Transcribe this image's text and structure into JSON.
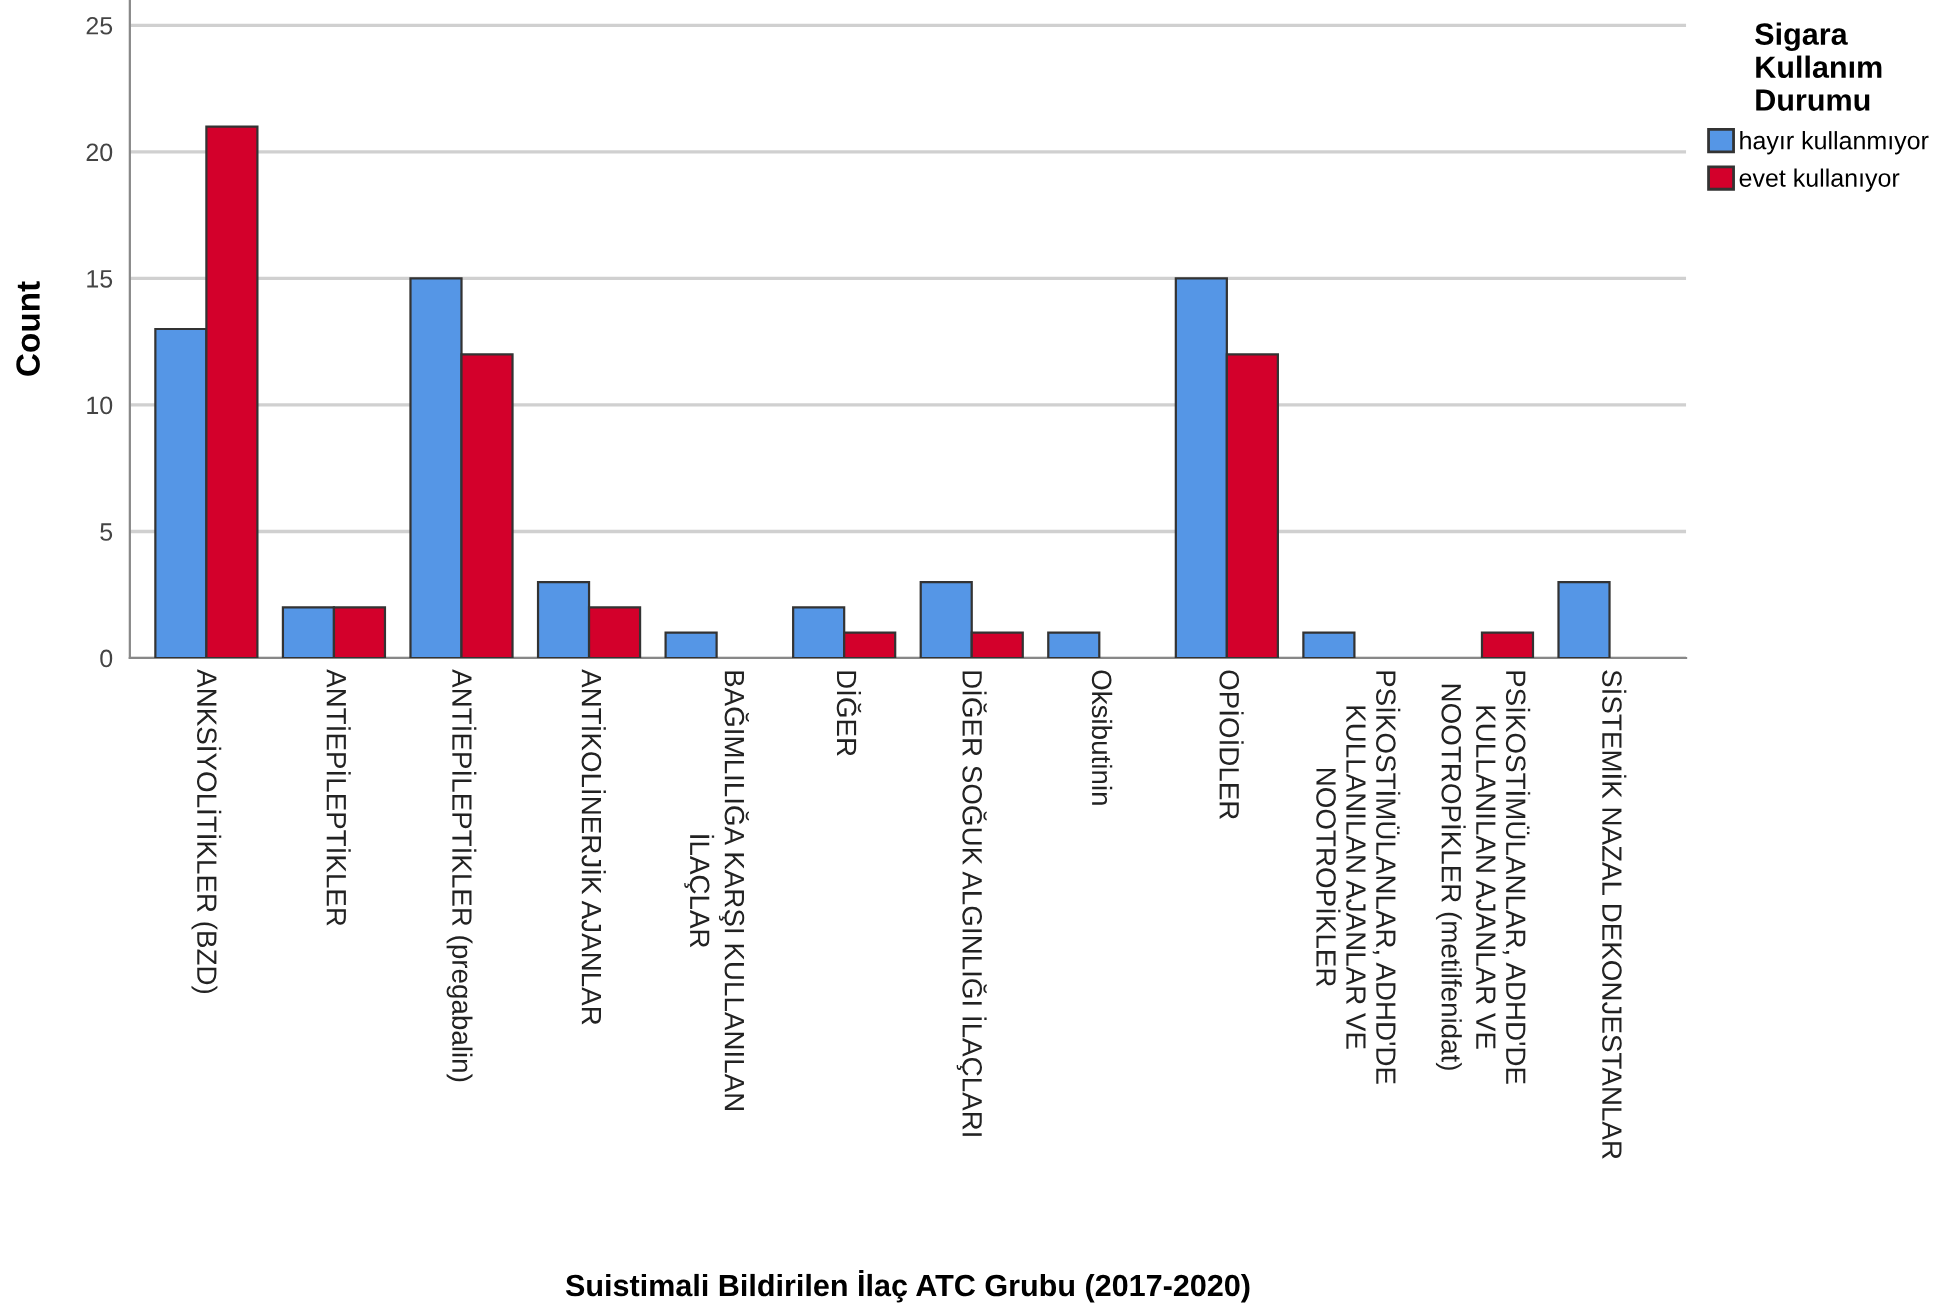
{
  "chart_data": {
    "type": "bar",
    "xlabel": "Suistimali Bildirilen İlaç ATC Grubu (2017-2020)",
    "ylabel": "Count",
    "legend_title": "Sigara\nKullanım\nDurumu",
    "categories": [
      "ANKSİYOLİTİKLER (BZD)",
      "ANTİEPİLEPTİKLER",
      "ANTİEPİLEPTİKLER (pregabalin)",
      "ANTİKOLİNERJİK AJANLAR",
      "BAĞIMLILIĞA KARŞI KULLANILAN\nİLAÇLAR",
      "DİĞER",
      "DİĞER SOĞUK ALGINLIĞI İLAÇLARI",
      "Oksibutinin",
      "OPİOİDLER",
      "PSİKOSTİMÜLANLAR, ADHD'DE\nKULLANILAN AJANLAR VE\nNOOTROPİKLER",
      "PSİKOSTİMÜLANLAR, ADHD'DE\nKULLANILAN AJANLAR VE\nNOOTROPİKLER (metilfenidat)",
      "SİSTEMİK NAZAL DEKONJESTANLAR"
    ],
    "series": [
      {
        "name": "hayır kullanmıyor",
        "color": "#5596e6",
        "values": [
          13,
          2,
          15,
          3,
          1,
          2,
          3,
          1,
          15,
          1,
          null,
          3
        ]
      },
      {
        "name": "evet kullanıyor",
        "color": "#d3002b",
        "values": [
          21,
          2,
          12,
          2,
          null,
          1,
          1,
          null,
          12,
          null,
          1,
          null
        ]
      }
    ],
    "ylim": [
      0,
      26
    ],
    "yticks": [
      0,
      5,
      10,
      15,
      20,
      25
    ],
    "grid": "y",
    "legend": "top right"
  }
}
